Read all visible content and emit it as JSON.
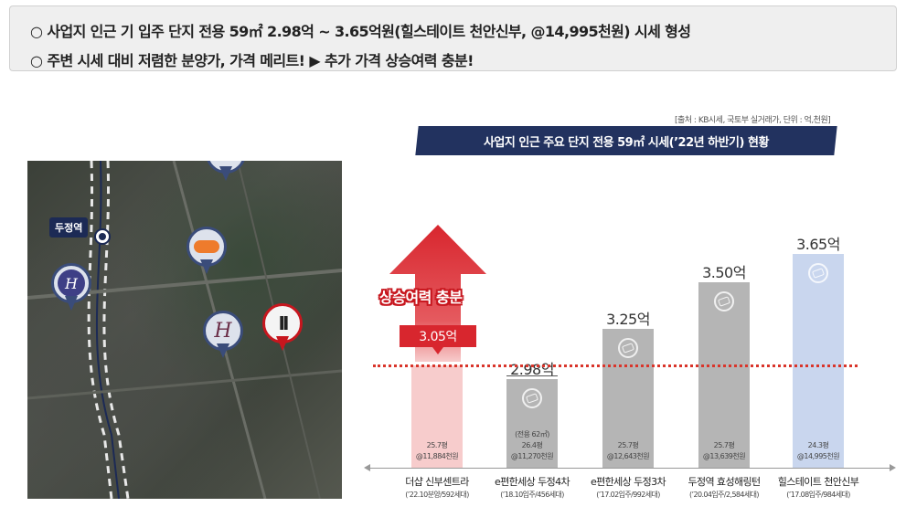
{
  "header": {
    "line1": "○ 사업지 인근 기 입주 단지 전용 59㎡ 2.98억 ~ 3.65억원(힐스테이트 천안신부, @14,995천원) 시세 형성",
    "line2": "○ 주변 시세 대비 저렴한 분양가, 가격 메리트! ▶ 추가 가격 상승여력 충분!"
  },
  "map": {
    "station_label": "두정역",
    "pins": [
      "orange-logo-pin",
      "orange-logo-pin",
      "h-logo-pin",
      "hillstate-logo-pin",
      "site-pin"
    ]
  },
  "chart": {
    "source": "[출처 : KB시세, 국토부 실거래가, 단위 : 억,천원]",
    "title": "사업지 인근 주요 단지 전용 59㎡ 시세(’22년 하반기) 현황",
    "rise_label": "상승여력 충분",
    "ref_value": "3.05억",
    "colors": {
      "red": "#d8262e",
      "navy": "#22325f",
      "gray": "#b5b5b5",
      "blue": "#c9d6ee",
      "pink": "#f7cccc"
    }
  },
  "chart_data": {
    "type": "bar",
    "title": "사업지 인근 주요 단지 전용 59㎡ 시세(’22년 하반기) 현황",
    "categories": [
      "더샵 신부센트라",
      "e편한세상 두정4차",
      "e편한세상 두정3차",
      "두정역 효성해링턴",
      "힐스테이트 천안신부"
    ],
    "values": [
      3.05,
      2.98,
      3.25,
      3.5,
      3.65
    ],
    "value_labels": [
      "",
      "2.98억",
      "3.25억",
      "3.50억",
      "3.65억"
    ],
    "ylabel": "",
    "ylim": [
      2.5,
      3.8
    ],
    "bar_info": [
      [
        "25.7평",
        "@11,884천원"
      ],
      [
        "(전용 62㎡)",
        "26.4평",
        "@11,270천원"
      ],
      [
        "25.7평",
        "@12,643천원"
      ],
      [
        "25.7평",
        "@13,639천원"
      ],
      [
        "24.3평",
        "@14,995천원"
      ]
    ],
    "sub_labels": [
      "(’22.10분양/592세대)",
      "(’18.10입주/456세대)",
      "(’17.02입주/992세대)",
      "(’20.04입주/2,584세대)",
      "(’17.08입주/984세대)"
    ],
    "reference_line": 3.05
  }
}
